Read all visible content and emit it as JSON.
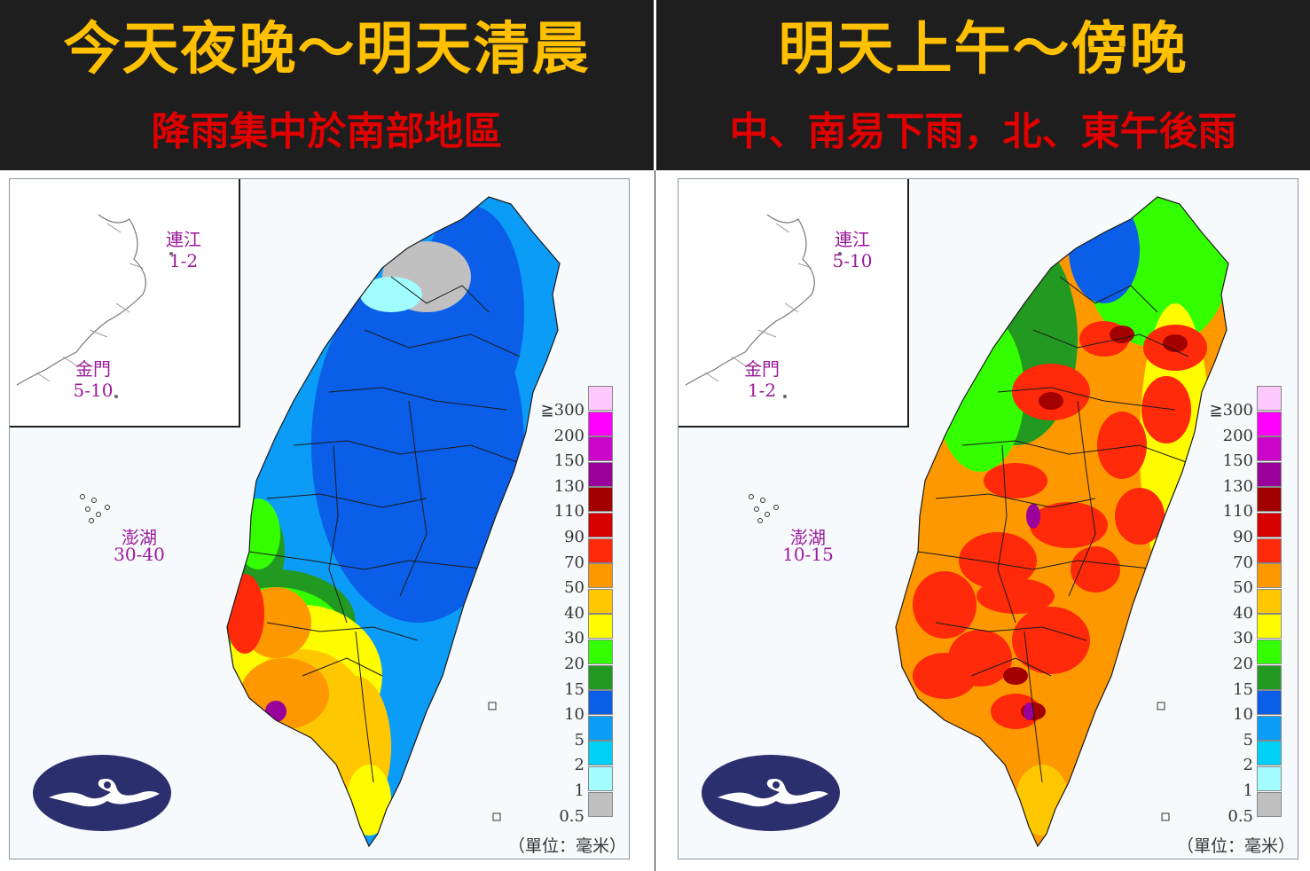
{
  "panels": [
    {
      "title": "今天夜晚～明天清晨",
      "subtitle": "降雨集中於南部地區",
      "matsu": {
        "name": "連江",
        "range": "1-2"
      },
      "kinmen": {
        "name": "金門",
        "range": "5-10"
      },
      "penghu": {
        "name": "澎湖",
        "range": "30-40"
      },
      "rain_pattern": "south-heavy"
    },
    {
      "title": "明天上午～傍晚",
      "subtitle": "中、南易下雨，北、東午後雨",
      "matsu": {
        "name": "連江",
        "range": "5-10"
      },
      "kinmen": {
        "name": "金門",
        "range": "1-2"
      },
      "penghu": {
        "name": "澎湖",
        "range": "10-15"
      },
      "rain_pattern": "widespread"
    }
  ],
  "legend": {
    "unit": "（單位：毫米）",
    "levels": [
      {
        "label": "≧300",
        "color": "#fdc9fd"
      },
      {
        "label": "200",
        "color": "#fe00fe"
      },
      {
        "label": "150",
        "color": "#c906c9"
      },
      {
        "label": "130",
        "color": "#9a009a"
      },
      {
        "label": "110",
        "color": "#a30000"
      },
      {
        "label": "90",
        "color": "#d70000"
      },
      {
        "label": "70",
        "color": "#fe2a0a"
      },
      {
        "label": "50",
        "color": "#fe9800"
      },
      {
        "label": "40",
        "color": "#fec700"
      },
      {
        "label": "30",
        "color": "#fffc00"
      },
      {
        "label": "20",
        "color": "#33ff00"
      },
      {
        "label": "15",
        "color": "#229a22"
      },
      {
        "label": "10",
        "color": "#0b5ee8"
      },
      {
        "label": "5",
        "color": "#0b9cf7"
      },
      {
        "label": "2",
        "color": "#00d0f5"
      },
      {
        "label": "1",
        "color": "#a2fefe"
      },
      {
        "label": "0.5",
        "color": "#c0c0c0"
      }
    ]
  },
  "colors": {
    "header_bg": "#1e1e1e",
    "title": "#ffc000",
    "subtitle": "#e00000",
    "logo": "#2b2f6e"
  }
}
